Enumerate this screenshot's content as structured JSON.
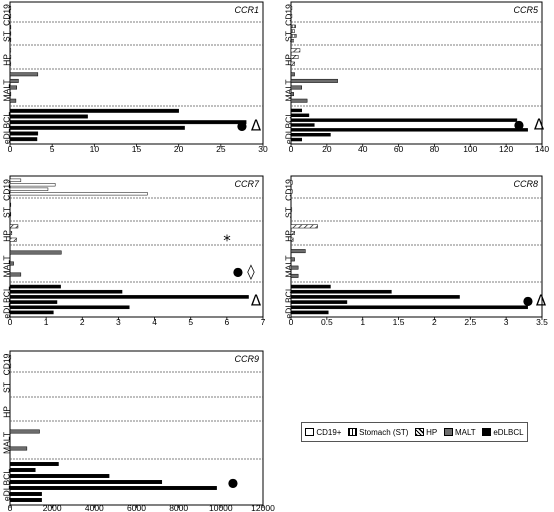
{
  "colors": {
    "cd19": "#ffffff",
    "stomach": "striped",
    "hp": "hatched",
    "malt": "#6d6d6d",
    "edlbcl": "#000000"
  },
  "legend": {
    "items": [
      {
        "label": "CD19+",
        "swatch": "cd19"
      },
      {
        "label": "Stomach  (ST)",
        "swatch": "stomach"
      },
      {
        "label": "HP",
        "swatch": "hp"
      },
      {
        "label": "MALT",
        "swatch": "malt"
      },
      {
        "label": "eDLBCL",
        "swatch": "edlbcl"
      }
    ]
  },
  "chart_data": [
    {
      "type": "bar",
      "orientation": "horizontal",
      "title": "CCR1",
      "xlim": [
        0,
        30
      ],
      "xticks": [
        "0",
        "5",
        "10",
        "15",
        "20",
        "25",
        "30"
      ],
      "groups": [
        {
          "name": "CD19",
          "values": [
            0.05,
            0.05
          ],
          "symbols": []
        },
        {
          "name": "ST",
          "values": [
            0.1,
            0.1,
            0.1
          ],
          "symbols": []
        },
        {
          "name": "HP",
          "values": [
            0.05,
            0.1,
            0.05
          ],
          "symbols": []
        },
        {
          "name": "MALT",
          "values": [
            3.3,
            1.0,
            0.8,
            0.1,
            0.7
          ],
          "symbols": []
        },
        {
          "name": "eDLBCL",
          "values": [
            20.0,
            9.2,
            28.0,
            20.7,
            3.3,
            3.2
          ],
          "symbols": [
            "●",
            "Δ"
          ]
        }
      ]
    },
    {
      "type": "bar",
      "orientation": "horizontal",
      "title": "CCR5",
      "xlim": [
        0,
        140
      ],
      "xticks": [
        "0",
        "20",
        "40",
        "60",
        "80",
        "100",
        "120",
        "140"
      ],
      "groups": [
        {
          "name": "CD19",
          "values": [
            0.5,
            0.5
          ],
          "symbols": []
        },
        {
          "name": "ST",
          "values": [
            2.5,
            2.0,
            3.0,
            1.5
          ],
          "symbols": []
        },
        {
          "name": "HP",
          "values": [
            5.0,
            4.0,
            2.0
          ],
          "symbols": []
        },
        {
          "name": "MALT",
          "values": [
            2.0,
            26.0,
            6.0,
            1.5,
            9.0
          ],
          "symbols": []
        },
        {
          "name": "eDLBCL",
          "values": [
            6.0,
            10.0,
            126.0,
            13.0,
            132.0,
            22.0,
            6.0
          ],
          "symbols": [
            "●",
            "Δ"
          ]
        }
      ]
    },
    {
      "type": "bar",
      "orientation": "horizontal",
      "title": "CCR7",
      "xlim": [
        0,
        7
      ],
      "xticks": [
        "0",
        "1",
        "2",
        "3",
        "4",
        "5",
        "6",
        "7"
      ],
      "groups": [
        {
          "name": "CD19",
          "values": [
            0.3,
            1.25,
            1.05,
            3.8
          ],
          "symbols": []
        },
        {
          "name": "ST",
          "values": [
            0.02,
            0.02
          ],
          "symbols": []
        },
        {
          "name": "HP",
          "values": [
            0.22,
            0.05,
            0.18
          ],
          "symbols": [
            "*"
          ]
        },
        {
          "name": "MALT",
          "values": [
            1.42,
            0.1,
            0.3
          ],
          "symbols": [
            "●",
            "◊"
          ]
        },
        {
          "name": "eDLBCL",
          "values": [
            1.4,
            3.1,
            6.6,
            1.3,
            3.3,
            1.2
          ],
          "symbols": [
            "Δ"
          ]
        }
      ]
    },
    {
      "type": "bar",
      "orientation": "horizontal",
      "title": "CCR8",
      "xlim": [
        0,
        3.5
      ],
      "xticks": [
        "0",
        "0.5",
        "1",
        "1.5",
        "2",
        "2.5",
        "3",
        "3.5"
      ],
      "groups": [
        {
          "name": "CD19",
          "values": [
            0.02,
            0.02
          ],
          "symbols": []
        },
        {
          "name": "ST",
          "values": [
            0.01
          ],
          "symbols": []
        },
        {
          "name": "HP",
          "values": [
            0.37,
            0.05,
            0.03
          ],
          "symbols": []
        },
        {
          "name": "MALT",
          "values": [
            0.2,
            0.05,
            0.1,
            0.1
          ],
          "symbols": []
        },
        {
          "name": "eDLBCL",
          "values": [
            0.55,
            1.4,
            2.35,
            0.78,
            3.3,
            0.52
          ],
          "symbols": [
            "●",
            "Δ"
          ]
        }
      ]
    },
    {
      "type": "bar",
      "orientation": "horizontal",
      "title": "CCR9",
      "xlim": [
        0,
        12000
      ],
      "xticks": [
        "0",
        "2000",
        "4000",
        "6000",
        "8000",
        "10000",
        "12000"
      ],
      "groups": [
        {
          "name": "CD19",
          "values": [
            30,
            30
          ],
          "symbols": []
        },
        {
          "name": "ST",
          "values": [],
          "symbols": []
        },
        {
          "name": "HP",
          "values": [],
          "symbols": []
        },
        {
          "name": "MALT",
          "values": [
            1400,
            800
          ],
          "symbols": []
        },
        {
          "name": "eDLBCL",
          "values": [
            2300,
            1200,
            4700,
            7200,
            9800,
            1500,
            1500
          ],
          "symbols": [
            "●"
          ]
        }
      ]
    }
  ]
}
